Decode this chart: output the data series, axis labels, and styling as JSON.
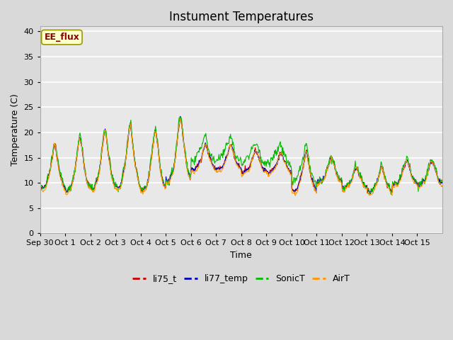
{
  "title": "Instument Temperatures",
  "ylabel": "Temperature (C)",
  "xlabel": "Time",
  "ylim": [
    0,
    41
  ],
  "yticks": [
    0,
    5,
    10,
    15,
    20,
    25,
    30,
    35,
    40
  ],
  "colors": {
    "li75_t": "#cc0000",
    "li77_temp": "#0000bb",
    "SonicT": "#00bb00",
    "AirT": "#ff9900"
  },
  "legend_labels": [
    "li75_t",
    "li77_temp",
    "SonicT",
    "AirT"
  ],
  "annotation_text": "EE_flux",
  "annotation_color": "#8b0000",
  "annotation_bg": "#ffffcc",
  "bg_color": "#e8e8e8",
  "grid_color": "#ffffff",
  "title_fontsize": 12,
  "axis_fontsize": 9,
  "tick_fontsize": 8,
  "figwidth": 6.4,
  "figheight": 4.8,
  "dpi": 100
}
